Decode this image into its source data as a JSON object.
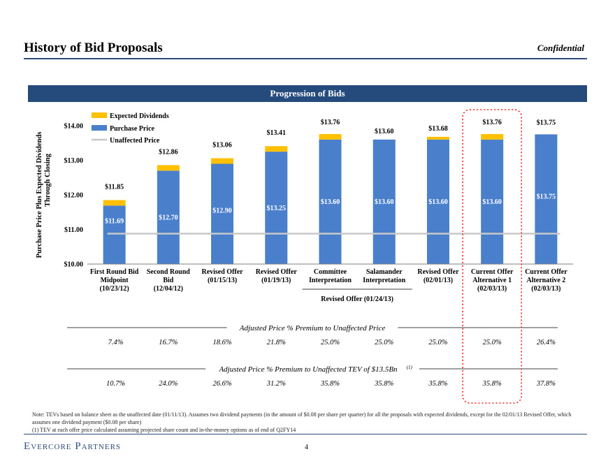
{
  "header": {
    "title": "History of Bid Proposals",
    "confidential": "Confidential"
  },
  "banner": {
    "title": "Progression of Bids"
  },
  "chart_data": {
    "type": "bar",
    "subtype": "stacked",
    "ylabel": "Purchase Price Plus Expected Dividends Through Closing",
    "ylim": [
      10,
      14
    ],
    "yticks": [
      "$10.00",
      "$11.00",
      "$12.00",
      "$13.00",
      "$14.00"
    ],
    "grid": false,
    "legend_position": "top-left",
    "categories": [
      [
        "First Round Bid",
        "Midpoint",
        "(10/23/12)"
      ],
      [
        "Second Round",
        "Bid",
        "(12/04/12)"
      ],
      [
        "Revised Offer",
        "(01/15/13)"
      ],
      [
        "Revised Offer",
        "(01/19/13)"
      ],
      [
        "Committee",
        "Interpretation"
      ],
      [
        "Salamander",
        "Interpretation"
      ],
      [
        "Revised Offer",
        "(02/01/13)"
      ],
      [
        "Current Offer",
        "Alternative 1",
        "(02/03/13)"
      ],
      [
        "Current Offer",
        "Alternative 2",
        "(02/03/13)"
      ]
    ],
    "group_label": "Revised Offer (01/24/13)",
    "series": [
      {
        "name": "Purchase Price",
        "color": "#4a7fcc",
        "values": [
          11.69,
          12.7,
          12.9,
          13.25,
          13.6,
          13.6,
          13.6,
          13.6,
          13.75
        ],
        "labels": [
          "$11.69",
          "$12.70",
          "$12.90",
          "$13.25",
          "$13.60",
          "$13.60",
          "$13.60",
          "$13.60",
          "$13.75"
        ]
      },
      {
        "name": "Expected Dividends",
        "color": "#ffc000",
        "values": [
          0.16,
          0.16,
          0.16,
          0.16,
          0.16,
          0.0,
          0.08,
          0.16,
          0.0
        ]
      },
      {
        "name": "Unaffected Price",
        "color": "#c8c8c8",
        "type": "line",
        "value": 10.88
      }
    ],
    "totals": [
      "$11.85",
      "$12.86",
      "$13.06",
      "$13.41",
      "$13.76",
      "$13.60",
      "$13.68",
      "$13.76",
      "$13.75"
    ],
    "legend": [
      "Expected Dividends",
      "Purchase Price",
      "Unaffected Price"
    ],
    "highlight_index": 7
  },
  "premiums": {
    "row1_title": "Adjusted Price % Premium to Unaffected Price",
    "row1_values": [
      "7.4%",
      "16.7%",
      "18.6%",
      "21.8%",
      "25.0%",
      "25.0%",
      "25.0%",
      "25.0%",
      "26.4%"
    ],
    "row2_title": "Adjusted Price % Premium to Unaffected TEV of $13.5Bn",
    "row2_sup": "(1)",
    "row2_values": [
      "10.7%",
      "24.0%",
      "26.6%",
      "31.2%",
      "35.8%",
      "35.8%",
      "35.8%",
      "35.8%",
      "37.8%"
    ]
  },
  "notes": {
    "line1": "Note: TEVs based on balance sheet as the unaffected date (01/11/13). Assumes two dividend payments (in the amount of $0.08 per share per quarter) for all the proposals with expected dividends, except for the 02/01/13 Revised Offer, which assumes one dividend payment ($0.08 per share)",
    "line2": "(1) TEV at each offer price calculated assuming projected share count and in-the-money options as of end of Q2FY14"
  },
  "footer": {
    "logo": "Evercore Partners",
    "page": "4"
  }
}
